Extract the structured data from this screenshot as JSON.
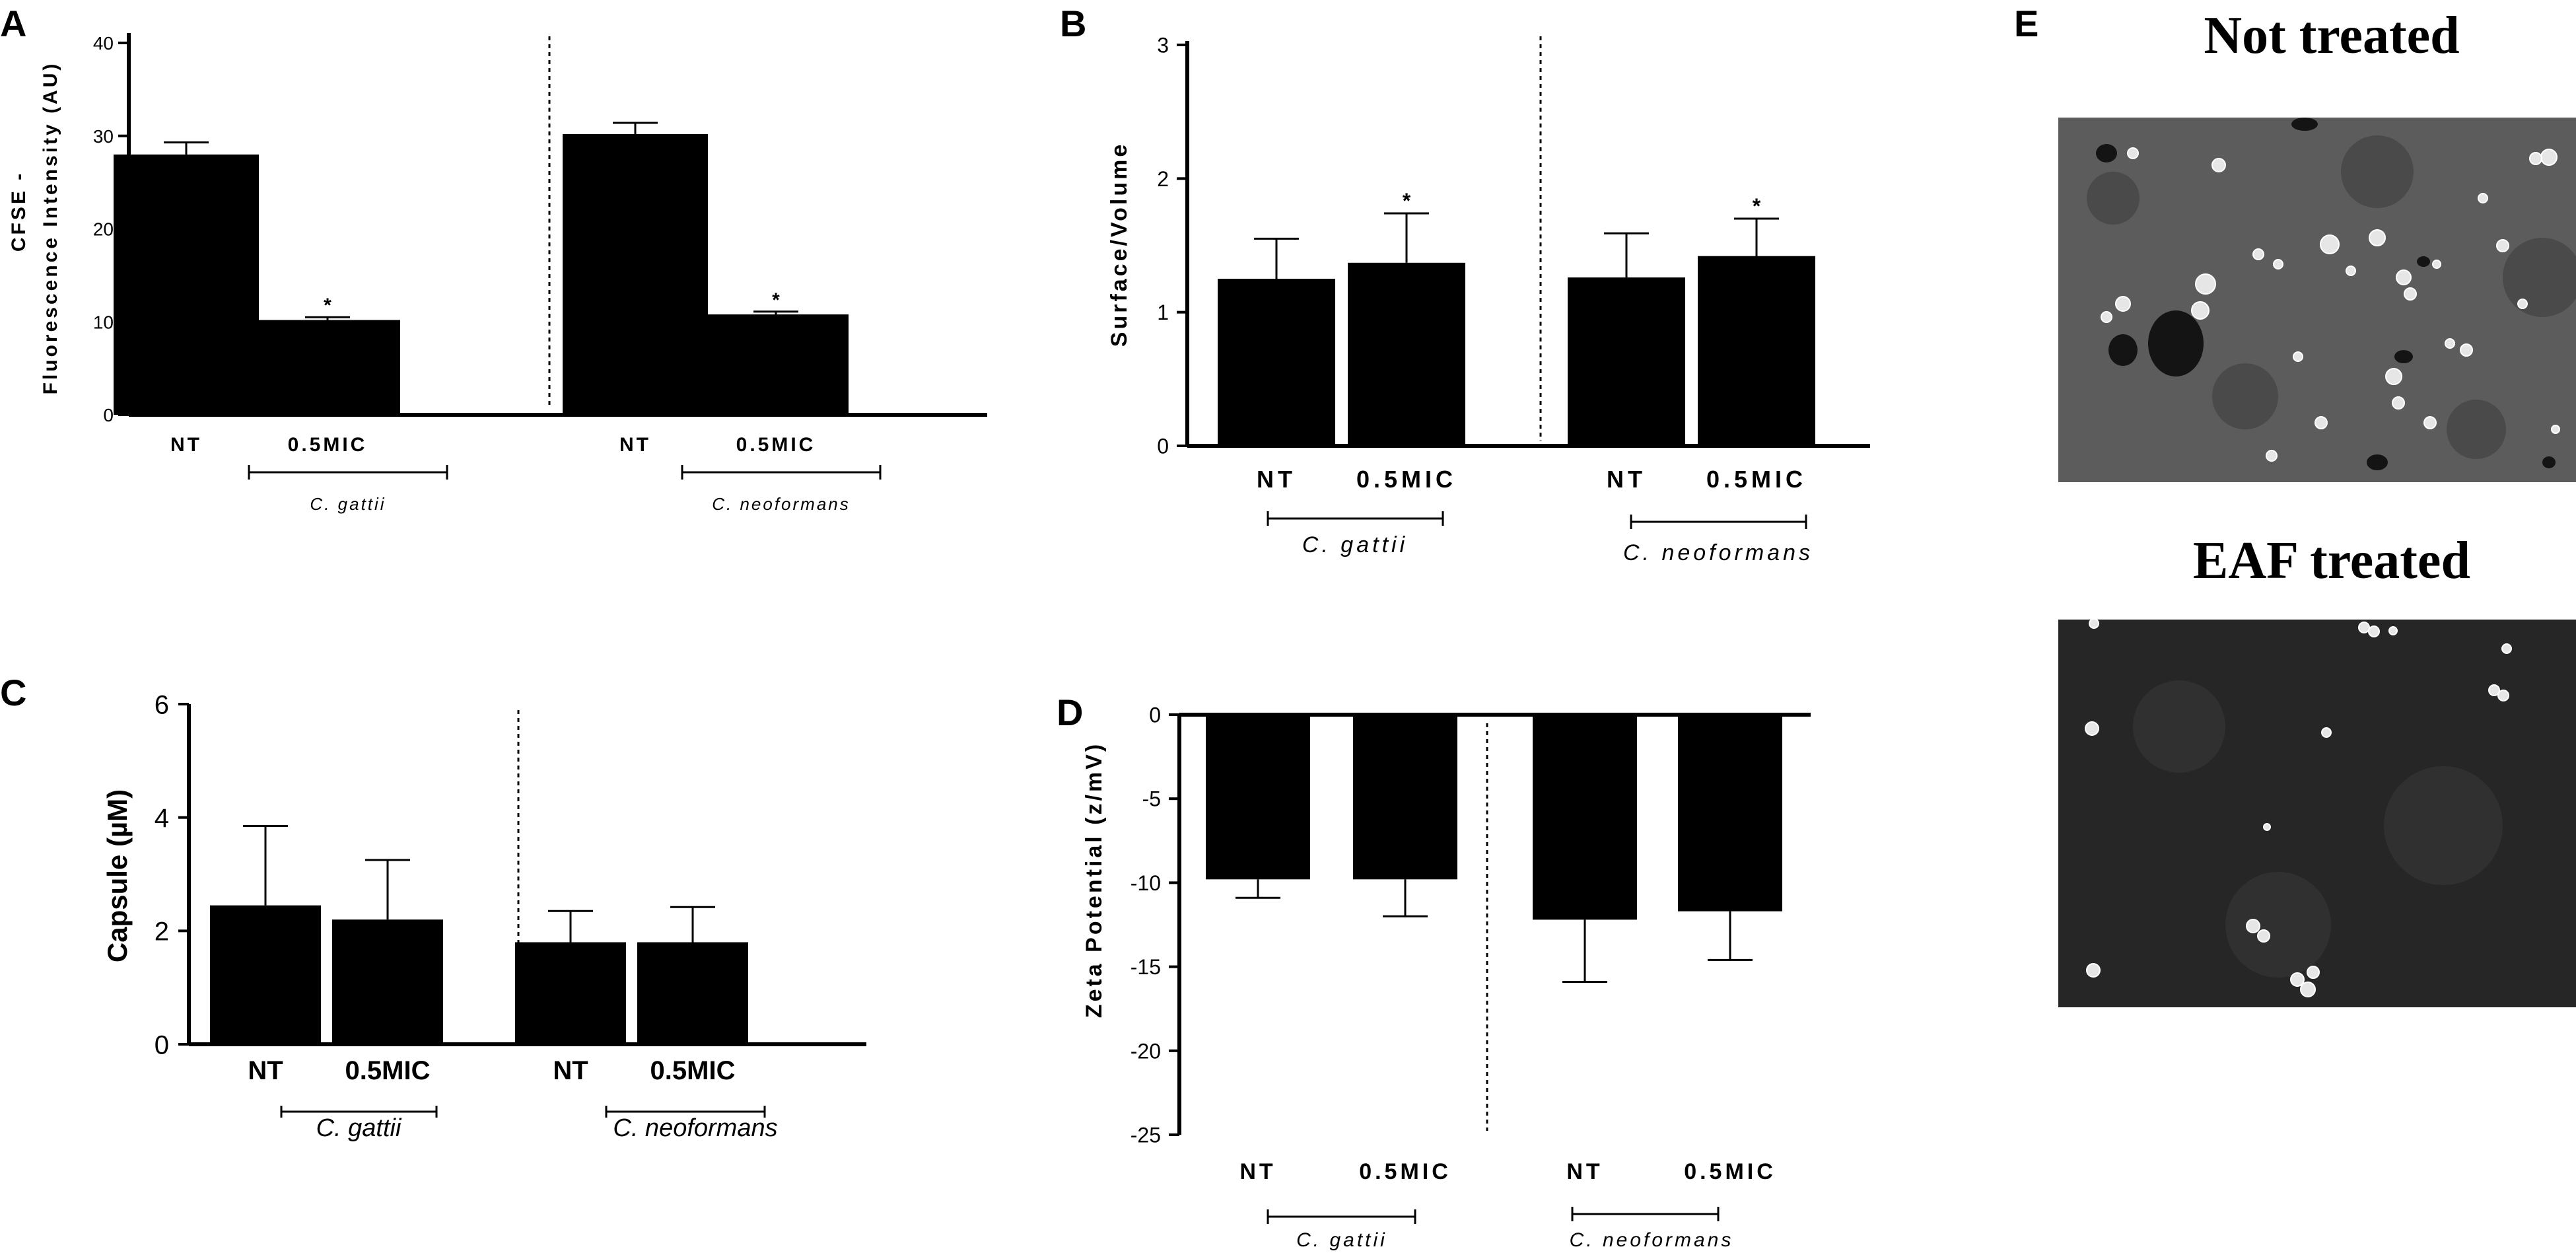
{
  "panel_labels": {
    "A": "A",
    "B": "B",
    "C": "C",
    "D": "D",
    "E": "E"
  },
  "chart_data": [
    {
      "panel": "A",
      "type": "bar",
      "categories": [
        "NT",
        "0.5MIC",
        "NT",
        "0.5MIC"
      ],
      "values": [
        28.0,
        10.2,
        30.2,
        10.8
      ],
      "errors": [
        1.3,
        0.3,
        1.2,
        0.3
      ],
      "significance": [
        "",
        "*",
        "",
        "*"
      ],
      "groups": [
        "C. gattii",
        "C. neoformans"
      ],
      "ylabel_line1": "CFSE -",
      "ylabel_line2": "Fluorescence Intensity (AU)",
      "ylim": [
        0,
        40
      ],
      "yticks": [
        "0",
        "10",
        "20",
        "30",
        "40"
      ]
    },
    {
      "panel": "B",
      "type": "bar",
      "categories": [
        "NT",
        "0.5MIC",
        "NT",
        "0.5MIC"
      ],
      "values": [
        1.25,
        1.37,
        1.26,
        1.42
      ],
      "errors": [
        0.3,
        0.37,
        0.33,
        0.28
      ],
      "significance": [
        "",
        "*",
        "",
        "*"
      ],
      "groups": [
        "C. gattii",
        "C. neoformans"
      ],
      "ylabel": "Surface/Volume",
      "ylim": [
        0,
        3
      ],
      "yticks": [
        "0",
        "1",
        "2",
        "3"
      ]
    },
    {
      "panel": "C",
      "type": "bar",
      "categories": [
        "NT",
        "0.5MIC",
        "NT",
        "0.5MIC"
      ],
      "values": [
        2.45,
        2.2,
        1.8,
        1.8
      ],
      "errors": [
        1.4,
        1.05,
        0.55,
        0.62
      ],
      "significance": [
        "",
        "",
        "",
        ""
      ],
      "groups": [
        "C. gattii",
        "C. neoformans"
      ],
      "ylabel": "Capsule (µM)",
      "ylim": [
        0,
        6
      ],
      "yticks": [
        "0",
        "2",
        "4",
        "6"
      ]
    },
    {
      "panel": "D",
      "type": "bar",
      "categories": [
        "NT",
        "0.5MIC",
        "NT",
        "0.5MIC"
      ],
      "values": [
        -9.8,
        -9.8,
        -12.2,
        -11.7
      ],
      "errors": [
        1.1,
        2.2,
        3.7,
        2.9
      ],
      "significance": [
        "",
        "",
        "",
        ""
      ],
      "groups": [
        "C. gattii",
        "C. neoformans"
      ],
      "ylabel": "Zeta Potential (z/mV)",
      "ylim": [
        -25,
        0
      ],
      "yticks": [
        "0",
        "-5",
        "-10",
        "-15",
        "-20",
        "-25"
      ]
    }
  ],
  "panel_e": {
    "title_top": "Not treated",
    "title_bottom": "EAF treated"
  }
}
